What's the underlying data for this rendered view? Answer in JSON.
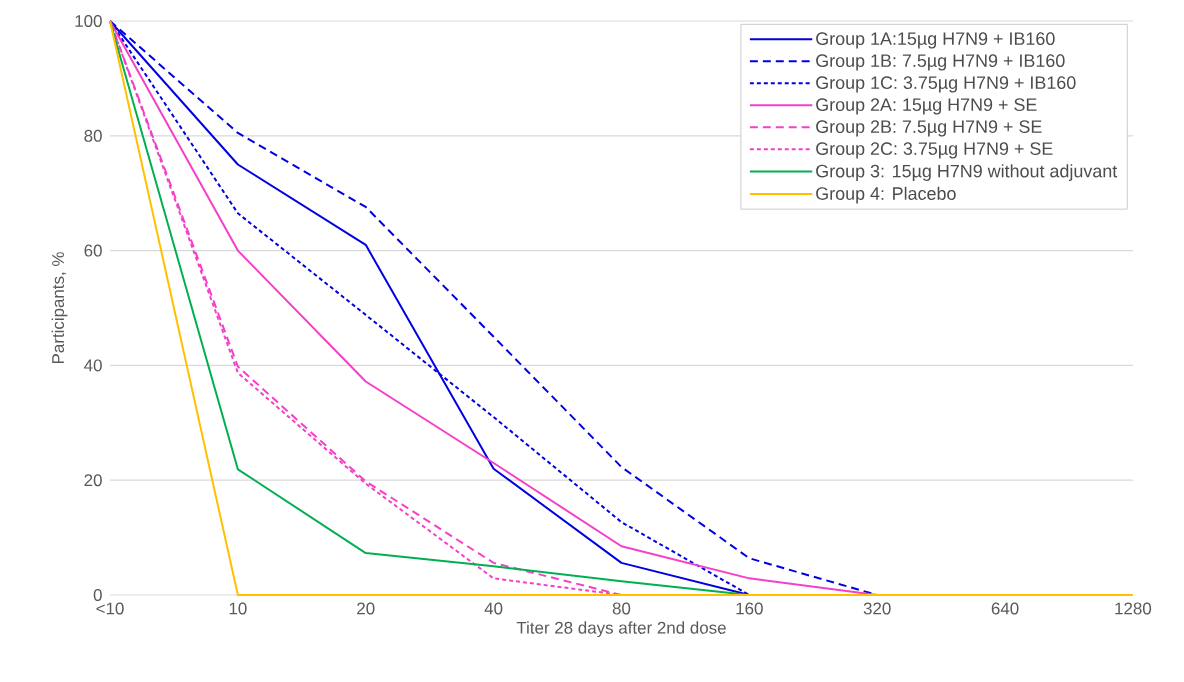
{
  "chart_data": {
    "type": "line",
    "xlabel": "Titer 28 days after 2nd dose",
    "ylabel": "Participants, %",
    "categories": [
      "<10",
      "10",
      "20",
      "40",
      "80",
      "160",
      "320",
      "640",
      "1280"
    ],
    "ylim": [
      0,
      100
    ],
    "yticks": [
      0,
      20,
      40,
      60,
      80,
      100
    ],
    "grid": "y",
    "legend": "top right",
    "marker": "none",
    "series": [
      {
        "name": "Group 1A:15µg H7N9 + IB160",
        "color": "#0000e0",
        "line_style": "solid",
        "values": [
          100,
          75,
          61,
          22,
          5.6,
          0,
          null,
          null,
          null
        ]
      },
      {
        "name": "Group 1B: 7.5µg H7N9 + IB160",
        "color": "#0000e0",
        "line_style": "dashed",
        "values": [
          100,
          80.5,
          67.6,
          45,
          22.3,
          6.4,
          0,
          null,
          null
        ]
      },
      {
        "name": "Group 1C: 3.75µg H7N9 + IB160",
        "color": "#0000e0",
        "line_style": "dotted",
        "values": [
          100,
          66.5,
          48.8,
          31,
          12.7,
          0,
          null,
          null,
          null
        ]
      },
      {
        "name": "Group 2A: 15µg H7N9 + SE",
        "color": "#f53fc8",
        "line_style": "solid",
        "values": [
          100,
          60,
          37.2,
          23,
          8.5,
          2.9,
          0,
          null,
          null
        ]
      },
      {
        "name": "Group 2B: 7.5µg H7N9 + SE",
        "color": "#f53fc8",
        "line_style": "dashed",
        "values": [
          100,
          39.8,
          19.8,
          5.6,
          0,
          null,
          null,
          null,
          null
        ]
      },
      {
        "name": "Group 2C: 3.75µg H7N9 + SE",
        "color": "#f53fc8",
        "line_style": "dotted",
        "values": [
          100,
          38.7,
          19.4,
          2.9,
          0,
          null,
          null,
          null,
          null
        ]
      },
      {
        "name": "Group 3: 15µg H7N9 without adjuvant",
        "color": "#00b050",
        "line_style": "solid",
        "values": [
          100,
          21.9,
          7.3,
          5,
          2.4,
          0,
          null,
          null,
          null
        ]
      },
      {
        "name": "Group 4: Placebo",
        "color": "#ffc000",
        "line_style": "solid",
        "values": [
          100,
          0,
          0,
          0,
          0,
          0,
          0,
          0,
          0
        ]
      }
    ]
  }
}
